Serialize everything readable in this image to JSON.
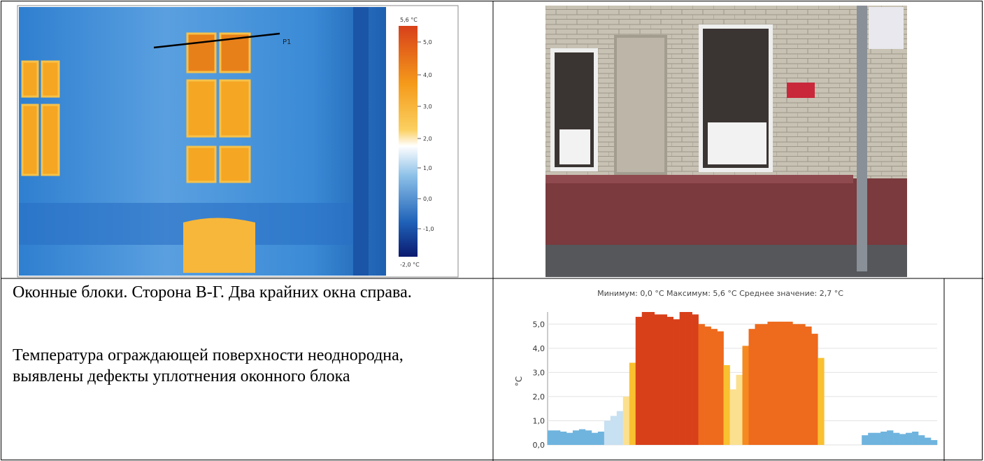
{
  "thermal": {
    "scale_max": "5,6 °C",
    "scale_min": "-2,0 °C",
    "scale_ticks": [
      "5,0",
      "4,0",
      "3,0",
      "2,0",
      "1,0",
      "0,0",
      "-1,0"
    ],
    "marker": "P1"
  },
  "description": {
    "line1": "Оконные блоки. Сторона В-Г. Два крайних окна справа.",
    "line2": "Температура ограждающей поверхности неоднородна, выявлены дефекты уплотнения оконного блока"
  },
  "chart_data": {
    "type": "bar",
    "title": "Минимум: 0,0 °C Максимум: 5,6 °C Среднее значение: 2,7 °C",
    "y_label": "°C",
    "values": [
      0.6,
      0.6,
      0.55,
      0.5,
      0.6,
      0.65,
      0.6,
      0.5,
      0.55,
      1.0,
      1.2,
      1.4,
      2.0,
      3.4,
      5.3,
      5.5,
      5.5,
      5.4,
      5.4,
      5.3,
      5.2,
      5.5,
      5.5,
      5.4,
      5.0,
      4.9,
      4.8,
      4.7,
      3.3,
      2.3,
      2.9,
      4.1,
      4.8,
      5.0,
      5.0,
      5.1,
      5.1,
      5.1,
      5.1,
      5.0,
      5.0,
      4.9,
      4.6,
      3.6,
      0,
      0,
      0,
      0,
      0,
      0,
      0.4,
      0.5,
      0.5,
      0.55,
      0.6,
      0.5,
      0.45,
      0.5,
      0.55,
      0.4,
      0.3,
      0.2
    ],
    "ylim": [
      0,
      5.5
    ],
    "yticks": [
      {
        "value": 0,
        "label": "0,0"
      },
      {
        "value": 1,
        "label": "1,0"
      },
      {
        "value": 2,
        "label": "2,0"
      },
      {
        "value": 3,
        "label": "3,0"
      },
      {
        "value": 4,
        "label": "4,0"
      },
      {
        "value": 5,
        "label": "5,0"
      }
    ],
    "grid": true
  }
}
